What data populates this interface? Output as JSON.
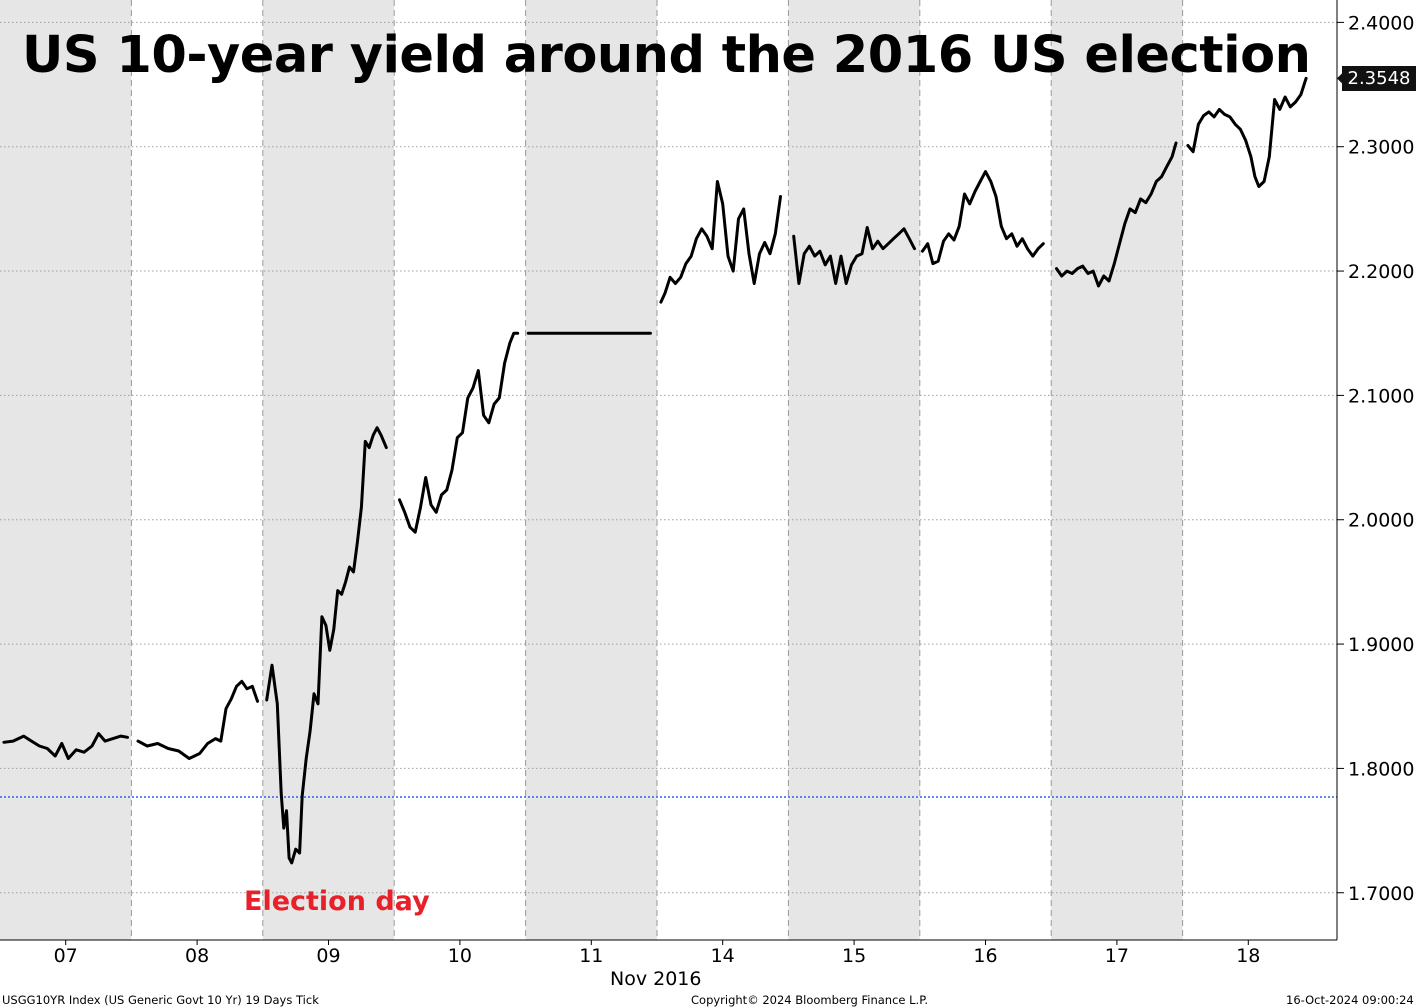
{
  "chart_data": {
    "type": "line",
    "title": "US 10-year yield around the 2016 US election",
    "month_label": "Nov 2016",
    "annotation": "Election day",
    "last_value_label": "2.3548",
    "reference_line": 1.777,
    "ylim": [
      1.662,
      2.418
    ],
    "yticks": [
      "1.7000",
      "1.8000",
      "1.9000",
      "2.0000",
      "2.1000",
      "2.2000",
      "2.3000",
      "2.4000"
    ],
    "days": [
      {
        "label": "07",
        "shaded": true
      },
      {
        "label": "08",
        "shaded": false
      },
      {
        "label": "09",
        "shaded": true
      },
      {
        "label": "10",
        "shaded": false
      },
      {
        "label": "11",
        "shaded": true
      },
      {
        "label": "14",
        "shaded": false
      },
      {
        "label": "15",
        "shaded": true
      },
      {
        "label": "16",
        "shaded": false
      },
      {
        "label": "17",
        "shaded": true
      },
      {
        "label": "18",
        "shaded": false
      }
    ],
    "series": [
      {
        "values": [
          [
            0.03,
            1.821
          ],
          [
            0.1,
            1.822
          ],
          [
            0.18,
            1.826
          ],
          [
            0.24,
            1.822
          ],
          [
            0.3,
            1.818
          ],
          [
            0.36,
            1.816
          ],
          [
            0.42,
            1.81
          ],
          [
            0.47,
            1.82
          ],
          [
            0.52,
            1.808
          ],
          [
            0.58,
            1.815
          ],
          [
            0.64,
            1.813
          ],
          [
            0.7,
            1.818
          ],
          [
            0.75,
            1.828
          ],
          [
            0.8,
            1.822
          ],
          [
            0.86,
            1.824
          ],
          [
            0.92,
            1.826
          ],
          [
            0.97,
            1.825
          ]
        ]
      },
      {
        "values": [
          [
            1.05,
            1.822
          ],
          [
            1.12,
            1.818
          ],
          [
            1.2,
            1.82
          ],
          [
            1.28,
            1.816
          ],
          [
            1.36,
            1.814
          ],
          [
            1.44,
            1.808
          ],
          [
            1.52,
            1.812
          ],
          [
            1.58,
            1.82
          ],
          [
            1.64,
            1.824
          ],
          [
            1.68,
            1.822
          ],
          [
            1.72,
            1.848
          ],
          [
            1.76,
            1.856
          ],
          [
            1.8,
            1.866
          ],
          [
            1.84,
            1.87
          ],
          [
            1.88,
            1.864
          ],
          [
            1.92,
            1.866
          ],
          [
            1.96,
            1.854
          ]
        ]
      },
      {
        "values": [
          [
            2.03,
            1.855
          ],
          [
            2.07,
            1.883
          ],
          [
            2.11,
            1.852
          ],
          [
            2.14,
            1.78
          ],
          [
            2.16,
            1.752
          ],
          [
            2.18,
            1.766
          ],
          [
            2.2,
            1.728
          ],
          [
            2.22,
            1.724
          ],
          [
            2.25,
            1.735
          ],
          [
            2.28,
            1.732
          ],
          [
            2.3,
            1.778
          ],
          [
            2.33,
            1.808
          ],
          [
            2.36,
            1.83
          ],
          [
            2.39,
            1.86
          ],
          [
            2.42,
            1.852
          ],
          [
            2.45,
            1.922
          ],
          [
            2.48,
            1.915
          ],
          [
            2.51,
            1.895
          ],
          [
            2.54,
            1.912
          ],
          [
            2.57,
            1.943
          ],
          [
            2.6,
            1.94
          ],
          [
            2.63,
            1.95
          ],
          [
            2.66,
            1.962
          ],
          [
            2.69,
            1.958
          ],
          [
            2.72,
            1.982
          ],
          [
            2.75,
            2.01
          ],
          [
            2.78,
            2.063
          ],
          [
            2.81,
            2.058
          ],
          [
            2.84,
            2.068
          ],
          [
            2.87,
            2.074
          ],
          [
            2.9,
            2.068
          ],
          [
            2.94,
            2.058
          ]
        ]
      },
      {
        "values": [
          [
            3.04,
            2.016
          ],
          [
            3.08,
            2.006
          ],
          [
            3.12,
            1.994
          ],
          [
            3.16,
            1.99
          ],
          [
            3.2,
            2.01
          ],
          [
            3.24,
            2.034
          ],
          [
            3.28,
            2.012
          ],
          [
            3.32,
            2.006
          ],
          [
            3.36,
            2.02
          ],
          [
            3.4,
            2.024
          ],
          [
            3.44,
            2.04
          ],
          [
            3.48,
            2.066
          ],
          [
            3.52,
            2.07
          ],
          [
            3.56,
            2.098
          ],
          [
            3.6,
            2.106
          ],
          [
            3.64,
            2.12
          ],
          [
            3.68,
            2.084
          ],
          [
            3.72,
            2.078
          ],
          [
            3.76,
            2.093
          ],
          [
            3.8,
            2.098
          ],
          [
            3.84,
            2.126
          ],
          [
            3.88,
            2.142
          ],
          [
            3.91,
            2.15
          ],
          [
            3.94,
            2.15
          ]
        ]
      },
      {
        "values": [
          [
            4.02,
            2.15
          ],
          [
            4.4,
            2.15
          ],
          [
            4.95,
            2.15
          ]
        ]
      },
      {
        "values": [
          [
            5.03,
            2.175
          ],
          [
            5.06,
            2.182
          ],
          [
            5.1,
            2.195
          ],
          [
            5.14,
            2.19
          ],
          [
            5.18,
            2.195
          ],
          [
            5.22,
            2.206
          ],
          [
            5.26,
            2.212
          ],
          [
            5.3,
            2.226
          ],
          [
            5.34,
            2.234
          ],
          [
            5.38,
            2.228
          ],
          [
            5.42,
            2.218
          ],
          [
            5.46,
            2.272
          ],
          [
            5.5,
            2.254
          ],
          [
            5.54,
            2.212
          ],
          [
            5.58,
            2.2
          ],
          [
            5.62,
            2.242
          ],
          [
            5.66,
            2.25
          ],
          [
            5.7,
            2.214
          ],
          [
            5.74,
            2.19
          ],
          [
            5.78,
            2.214
          ],
          [
            5.82,
            2.223
          ],
          [
            5.86,
            2.214
          ],
          [
            5.9,
            2.23
          ],
          [
            5.94,
            2.26
          ]
        ]
      },
      {
        "values": [
          [
            6.04,
            2.228
          ],
          [
            6.08,
            2.19
          ],
          [
            6.12,
            2.214
          ],
          [
            6.16,
            2.22
          ],
          [
            6.2,
            2.212
          ],
          [
            6.24,
            2.216
          ],
          [
            6.28,
            2.205
          ],
          [
            6.32,
            2.212
          ],
          [
            6.36,
            2.19
          ],
          [
            6.4,
            2.212
          ],
          [
            6.44,
            2.19
          ],
          [
            6.48,
            2.205
          ],
          [
            6.52,
            2.212
          ],
          [
            6.56,
            2.214
          ],
          [
            6.6,
            2.235
          ],
          [
            6.64,
            2.218
          ],
          [
            6.68,
            2.224
          ],
          [
            6.72,
            2.218
          ],
          [
            6.76,
            2.222
          ],
          [
            6.8,
            2.226
          ],
          [
            6.84,
            2.23
          ],
          [
            6.88,
            2.234
          ],
          [
            6.92,
            2.226
          ],
          [
            6.96,
            2.218
          ]
        ]
      },
      {
        "values": [
          [
            7.02,
            2.216
          ],
          [
            7.06,
            2.222
          ],
          [
            7.1,
            2.206
          ],
          [
            7.14,
            2.208
          ],
          [
            7.18,
            2.224
          ],
          [
            7.22,
            2.23
          ],
          [
            7.26,
            2.225
          ],
          [
            7.3,
            2.236
          ],
          [
            7.34,
            2.262
          ],
          [
            7.38,
            2.254
          ],
          [
            7.42,
            2.264
          ],
          [
            7.46,
            2.272
          ],
          [
            7.5,
            2.28
          ],
          [
            7.54,
            2.272
          ],
          [
            7.58,
            2.26
          ],
          [
            7.62,
            2.236
          ],
          [
            7.66,
            2.226
          ],
          [
            7.7,
            2.23
          ],
          [
            7.74,
            2.22
          ],
          [
            7.78,
            2.226
          ],
          [
            7.82,
            2.218
          ],
          [
            7.86,
            2.212
          ],
          [
            7.9,
            2.218
          ],
          [
            7.94,
            2.222
          ]
        ]
      },
      {
        "values": [
          [
            8.04,
            2.202
          ],
          [
            8.08,
            2.196
          ],
          [
            8.12,
            2.2
          ],
          [
            8.16,
            2.198
          ],
          [
            8.2,
            2.202
          ],
          [
            8.24,
            2.204
          ],
          [
            8.28,
            2.198
          ],
          [
            8.32,
            2.2
          ],
          [
            8.36,
            2.188
          ],
          [
            8.4,
            2.196
          ],
          [
            8.44,
            2.192
          ],
          [
            8.48,
            2.206
          ],
          [
            8.52,
            2.222
          ],
          [
            8.56,
            2.238
          ],
          [
            8.6,
            2.25
          ],
          [
            8.64,
            2.247
          ],
          [
            8.68,
            2.258
          ],
          [
            8.72,
            2.255
          ],
          [
            8.76,
            2.262
          ],
          [
            8.8,
            2.272
          ],
          [
            8.84,
            2.276
          ],
          [
            8.88,
            2.284
          ],
          [
            8.92,
            2.292
          ],
          [
            8.95,
            2.303
          ]
        ]
      },
      {
        "values": [
          [
            9.04,
            2.301
          ],
          [
            9.08,
            2.296
          ],
          [
            9.12,
            2.318
          ],
          [
            9.16,
            2.325
          ],
          [
            9.2,
            2.328
          ],
          [
            9.24,
            2.324
          ],
          [
            9.28,
            2.33
          ],
          [
            9.32,
            2.326
          ],
          [
            9.36,
            2.324
          ],
          [
            9.4,
            2.318
          ],
          [
            9.44,
            2.314
          ],
          [
            9.48,
            2.305
          ],
          [
            9.52,
            2.292
          ],
          [
            9.55,
            2.276
          ],
          [
            9.58,
            2.268
          ],
          [
            9.62,
            2.272
          ],
          [
            9.66,
            2.292
          ],
          [
            9.7,
            2.338
          ],
          [
            9.74,
            2.33
          ],
          [
            9.78,
            2.34
          ],
          [
            9.82,
            2.332
          ],
          [
            9.86,
            2.336
          ],
          [
            9.9,
            2.342
          ],
          [
            9.94,
            2.355
          ]
        ]
      }
    ]
  },
  "footer": {
    "left": "USGG10YR Index (US Generic Govt 10 Yr) 19 Days  Tick",
    "center": "Copyright© 2024 Bloomberg Finance L.P.",
    "right": "16-Oct-2024 09:00:24"
  }
}
